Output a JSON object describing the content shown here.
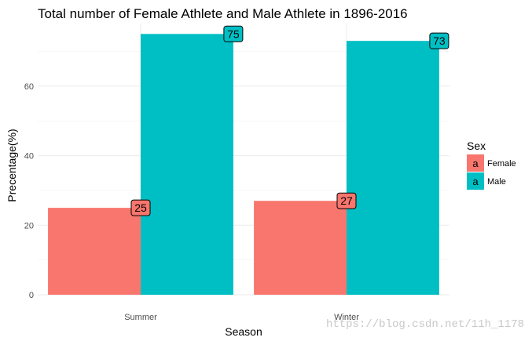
{
  "chart_data": {
    "type": "bar",
    "title": "Total number of Female Athlete and Male Athlete in 1896-2016",
    "xlabel": "Season",
    "ylabel": "Precentage(%)",
    "categories": [
      "Summer",
      "Winter"
    ],
    "series": [
      {
        "name": "Female",
        "values": [
          25,
          27
        ],
        "color": "#F8766D"
      },
      {
        "name": "Male",
        "values": [
          75,
          73
        ],
        "color": "#00BFC4"
      }
    ],
    "ylim": [
      0,
      78
    ],
    "yticks": [
      0,
      20,
      40,
      60
    ],
    "grid": true,
    "legend": {
      "title": "Sex",
      "key_letter": "a",
      "position": "right"
    }
  },
  "watermark": "https://blog.csdn.net/11h_1178"
}
